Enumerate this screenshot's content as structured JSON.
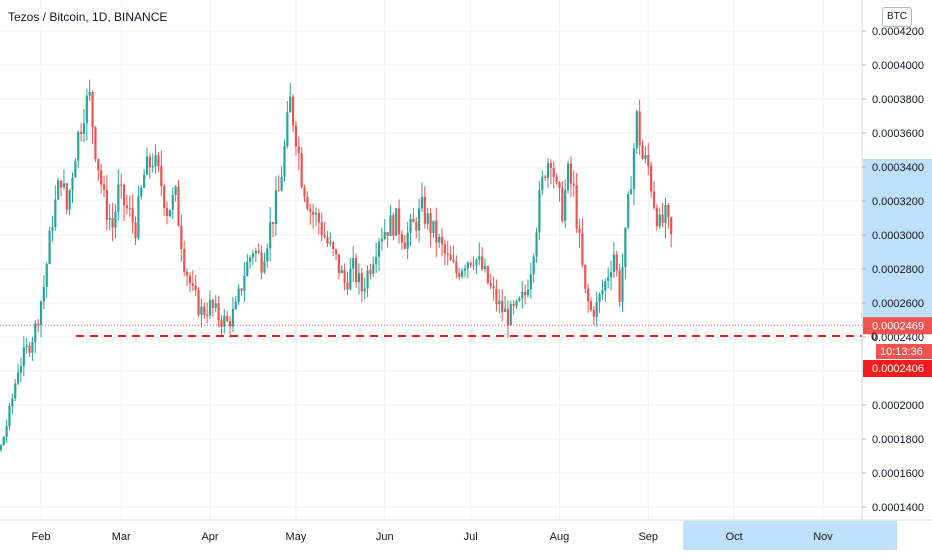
{
  "header": {
    "symbol_title": "Tezos / Bitcoin, 1D, BINANCE",
    "currency_badge": "BTC"
  },
  "colors": {
    "up": "#26a69a",
    "down": "#ef5350",
    "grid": "#eef0f3",
    "axis_text": "#131722",
    "support_line": "#e0211d",
    "last_price_bg": "#ef5350",
    "support_price_bg": "#f21c1c",
    "timer_bg": "#ef5350",
    "axis_highlight": "#bfe0f8"
  },
  "chart_data": {
    "type": "candlestick",
    "title": "Tezos / Bitcoin, 1D, BINANCE",
    "ylim": [
      0.000134,
      0.000432
    ],
    "y_ticks": [
      "0.0001400",
      "0.0001600",
      "0.0001800",
      "0.0002000",
      "0.0002200",
      "0.0002400",
      "0.0002600",
      "0.0002800",
      "0.0003000",
      "0.0003200",
      "0.0003400",
      "0.0003600",
      "0.0003800",
      "0.0004000",
      "0.0004200"
    ],
    "y_tick_values": [
      0.00014,
      0.00016,
      0.00018,
      0.0002,
      0.00022,
      0.00024,
      0.00026,
      0.00028,
      0.0003,
      0.00032,
      0.00034,
      0.00036,
      0.00038,
      0.0004,
      0.00042
    ],
    "x_ticks": [
      "Feb",
      "Mar",
      "Apr",
      "May",
      "Jun",
      "Jul",
      "Aug",
      "Sep",
      "Oct",
      "Nov"
    ],
    "x_tick_days": [
      31,
      59,
      90,
      120,
      151,
      181,
      212,
      243,
      273,
      304
    ],
    "xlim_days": [
      0,
      325
    ],
    "last_candle_day": 251,
    "future_highlight_days": [
      251,
      325
    ],
    "anchors": [
      [
        0,
        0.000163
      ],
      [
        4,
        0.000178
      ],
      [
        8,
        0.000188
      ],
      [
        11,
        0.00018
      ],
      [
        14,
        0.000168
      ],
      [
        17,
        0.000175
      ],
      [
        20,
        0.000195
      ],
      [
        23,
        0.000222
      ],
      [
        26,
        0.000232
      ],
      [
        29,
        0.000245
      ],
      [
        32,
        0.00027
      ],
      [
        35,
        0.00031
      ],
      [
        38,
        0.000335
      ],
      [
        40,
        0.000315
      ],
      [
        43,
        0.00035
      ],
      [
        46,
        0.000375
      ],
      [
        48,
        0.00038
      ],
      [
        50,
        0.000352
      ],
      [
        53,
        0.00032
      ],
      [
        56,
        0.000305
      ],
      [
        58,
        0.000325
      ],
      [
        61,
        0.000315
      ],
      [
        64,
        0.000305
      ],
      [
        67,
        0.000335
      ],
      [
        70,
        0.000345
      ],
      [
        73,
        0.00033
      ],
      [
        75,
        0.000315
      ],
      [
        78,
        0.000322
      ],
      [
        81,
        0.000285
      ],
      [
        84,
        0.000265
      ],
      [
        87,
        0.000255
      ],
      [
        90,
        0.000258
      ],
      [
        93,
        0.000252
      ],
      [
        96,
        0.000248
      ],
      [
        99,
        0.000256
      ],
      [
        102,
        0.000278
      ],
      [
        105,
        0.000292
      ],
      [
        108,
        0.000285
      ],
      [
        111,
        0.000305
      ],
      [
        114,
        0.000325
      ],
      [
        116,
        0.00035
      ],
      [
        118,
        0.000378
      ],
      [
        120,
        0.00036
      ],
      [
        122,
        0.000335
      ],
      [
        125,
        0.000315
      ],
      [
        128,
        0.000308
      ],
      [
        131,
        0.000295
      ],
      [
        134,
        0.000285
      ],
      [
        137,
        0.000272
      ],
      [
        140,
        0.00028
      ],
      [
        143,
        0.000268
      ],
      [
        146,
        0.000283
      ],
      [
        149,
        0.0003
      ],
      [
        152,
        0.000305
      ],
      [
        155,
        0.000308
      ],
      [
        158,
        0.000298
      ],
      [
        161,
        0.000305
      ],
      [
        164,
        0.000315
      ],
      [
        167,
        0.000305
      ],
      [
        170,
        0.000295
      ],
      [
        173,
        0.000285
      ],
      [
        176,
        0.000278
      ],
      [
        179,
        0.000285
      ],
      [
        182,
        0.000288
      ],
      [
        185,
        0.00028
      ],
      [
        188,
        0.000268
      ],
      [
        191,
        0.000258
      ],
      [
        194,
        0.000252
      ],
      [
        197,
        0.000256
      ],
      [
        200,
        0.000265
      ],
      [
        202,
        0.000282
      ],
      [
        205,
        0.00032
      ],
      [
        207,
        0.00034
      ],
      [
        209,
        0.000348
      ],
      [
        211,
        0.000325
      ],
      [
        213,
        0.000315
      ],
      [
        215,
        0.000335
      ],
      [
        217,
        0.000325
      ],
      [
        219,
        0.000295
      ],
      [
        221,
        0.000265
      ],
      [
        223,
        0.000255
      ],
      [
        225,
        0.000258
      ],
      [
        228,
        0.000272
      ],
      [
        231,
        0.00029
      ],
      [
        233,
        0.000265
      ],
      [
        235,
        0.000298
      ],
      [
        237,
        0.000335
      ],
      [
        239,
        0.000368
      ],
      [
        241,
        0.000345
      ],
      [
        243,
        0.00034
      ],
      [
        245,
        0.00032
      ],
      [
        247,
        0.000305
      ],
      [
        249,
        0.00031
      ],
      [
        251,
        0.000298
      ]
    ],
    "support_level": 0.0002406,
    "support_label": "0.0002406",
    "last_price": 0.0002469,
    "last_price_label": "0.0002469",
    "countdown": "10:13:36",
    "partial_label": "0"
  }
}
